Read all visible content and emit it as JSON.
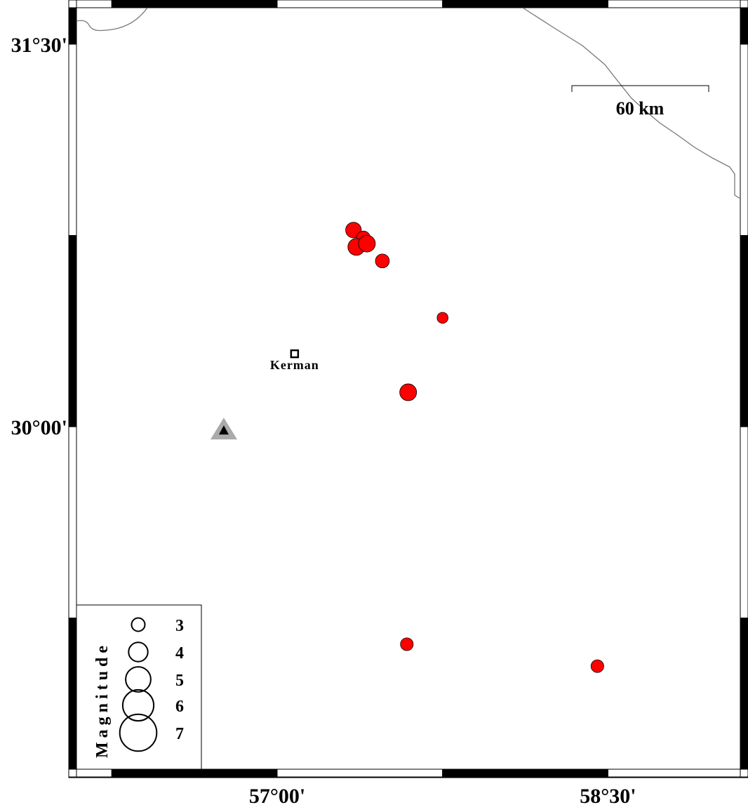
{
  "map": {
    "lon_range": [
      56.09,
      59.1
    ],
    "lat_range": [
      28.657,
      31.643
    ],
    "x_ticks": [
      {
        "value": 57.0,
        "label": "57°00'"
      },
      {
        "value": 58.5,
        "label": "58°30'"
      }
    ],
    "y_ticks": [
      {
        "value": 31.5,
        "label": "31°30'"
      },
      {
        "value": 30.0,
        "label": "30°00'"
      }
    ],
    "frame_interval_deg": 0.75,
    "colors": {
      "event": "#ff0000",
      "border": "#777777",
      "station_outer": "#aaaaaa",
      "station_inner": "#000000"
    }
  },
  "scale_bar": {
    "label": "60 km"
  },
  "city": {
    "name": "Kerman",
    "lon": 57.079,
    "lat": 30.286
  },
  "station": {
    "lon": 56.758,
    "lat": 29.986,
    "icon": "triangle-icon"
  },
  "events": [
    {
      "lon": 57.346,
      "lat": 30.771,
      "mag": 3.4
    },
    {
      "lon": 57.391,
      "lat": 30.74,
      "mag": 3.1
    },
    {
      "lon": 57.359,
      "lat": 30.705,
      "mag": 3.6
    },
    {
      "lon": 57.407,
      "lat": 30.718,
      "mag": 3.6
    },
    {
      "lon": 57.477,
      "lat": 30.65,
      "mag": 3.1
    },
    {
      "lon": 57.75,
      "lat": 30.427,
      "mag": 2.6
    },
    {
      "lon": 57.594,
      "lat": 30.135,
      "mag": 3.6
    },
    {
      "lon": 57.588,
      "lat": 29.147,
      "mag": 2.9
    },
    {
      "lon": 58.452,
      "lat": 29.061,
      "mag": 2.9
    }
  ],
  "legend": {
    "title": "Magnitude",
    "items": [
      {
        "label": "3",
        "mag": 3
      },
      {
        "label": "4",
        "mag": 4
      },
      {
        "label": "5",
        "mag": 5
      },
      {
        "label": "6",
        "mag": 6
      },
      {
        "label": "7",
        "mag": 7
      }
    ]
  }
}
